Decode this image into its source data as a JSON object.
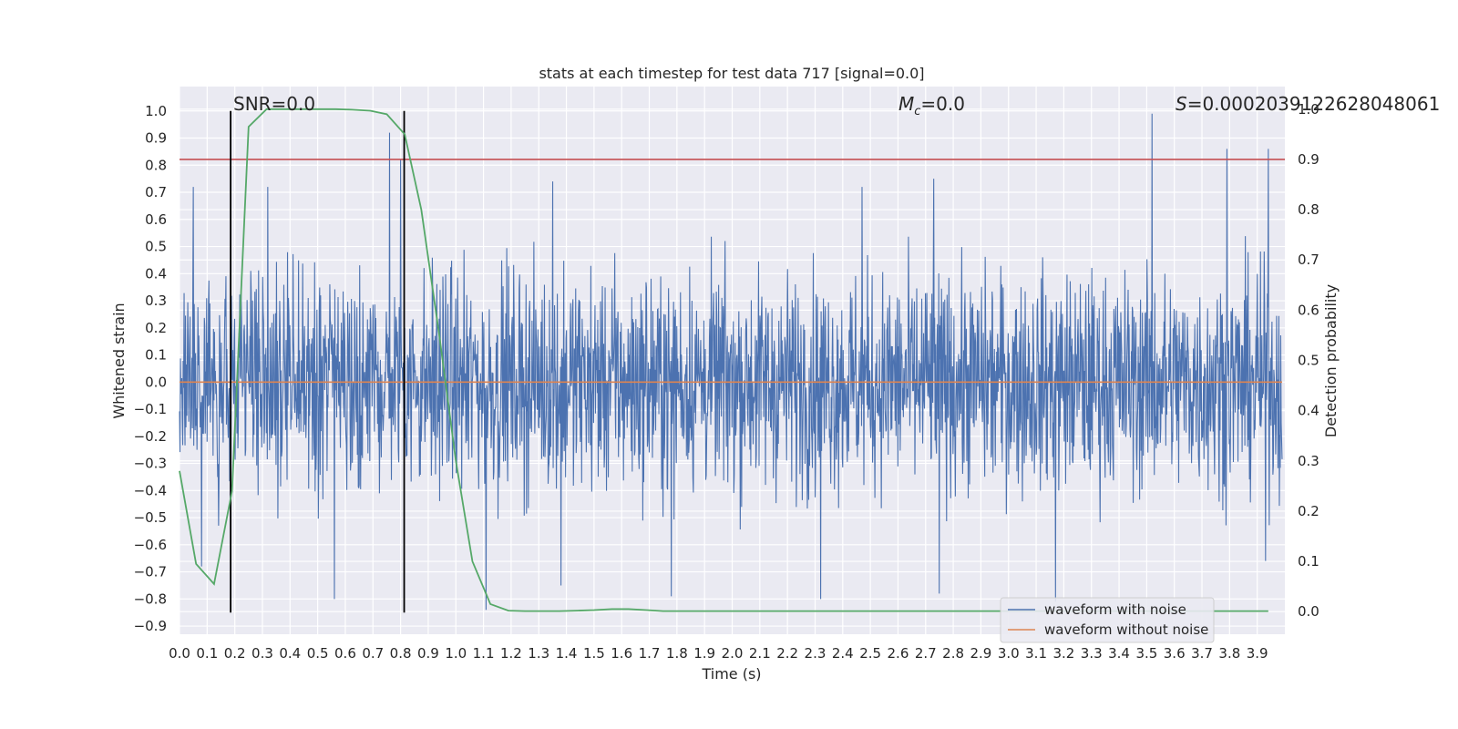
{
  "chart_data": {
    "type": "line",
    "title": "stats at each timestep for test data 717 [signal=0.0]",
    "xlabel": "Time (s)",
    "ylabel": "Whitened strain",
    "ylabel_right": "Detection probability",
    "xlim": [
      0.0,
      4.0
    ],
    "ylim": [
      -0.93,
      1.09
    ],
    "ylim_right": [
      -0.045,
      1.045
    ],
    "grid": true,
    "legend_position": "lower-right",
    "x_ticks": [
      "0.0",
      "0.1",
      "0.2",
      "0.3",
      "0.4",
      "0.5",
      "0.6",
      "0.7",
      "0.8",
      "0.9",
      "1.0",
      "1.1",
      "1.2",
      "1.3",
      "1.4",
      "1.5",
      "1.6",
      "1.7",
      "1.8",
      "1.9",
      "2.0",
      "2.1",
      "2.2",
      "2.3",
      "2.4",
      "2.5",
      "2.6",
      "2.7",
      "2.8",
      "2.9",
      "3.0",
      "3.1",
      "3.2",
      "3.3",
      "3.4",
      "3.5",
      "3.6",
      "3.7",
      "3.8",
      "3.9"
    ],
    "y_ticks": [
      "1.0",
      "0.9",
      "0.8",
      "0.7",
      "0.6",
      "0.5",
      "0.4",
      "0.3",
      "0.2",
      "0.1",
      "0.0",
      "−0.1",
      "−0.2",
      "−0.3",
      "−0.4",
      "−0.5",
      "−0.6",
      "−0.7",
      "−0.8",
      "−0.9"
    ],
    "y_ticks_right": [
      "1.0",
      "0.9",
      "0.8",
      "0.7",
      "0.6",
      "0.5",
      "0.4",
      "0.3",
      "0.2",
      "0.1",
      "0.0"
    ],
    "annotations": {
      "snr": "SNR=0.0",
      "mc_symbol": "M",
      "mc_sub": "c",
      "mc_value": "=0.0",
      "s_symbol": "S",
      "s_value": "=0.0002039122628048061"
    },
    "threshold_right": 0.9,
    "vertical_markers": [
      0.185,
      0.813
    ],
    "vertical_marker_range": [
      -0.85,
      1.0
    ],
    "series": [
      {
        "name": "waveform with noise",
        "color": "#4c72b0",
        "description": "dense noise trace, approx range -0.84 to 1.0",
        "noise_sigma": 0.2,
        "peaks": [
          {
            "x": 0.05,
            "y": 0.72
          },
          {
            "x": 0.08,
            "y": -0.68
          },
          {
            "x": 0.185,
            "y": -0.62
          },
          {
            "x": 0.32,
            "y": 0.72
          },
          {
            "x": 0.56,
            "y": -0.8
          },
          {
            "x": 0.76,
            "y": 0.92
          },
          {
            "x": 0.8,
            "y": 0.82
          },
          {
            "x": 1.11,
            "y": -0.84
          },
          {
            "x": 1.35,
            "y": 0.74
          },
          {
            "x": 1.38,
            "y": -0.75
          },
          {
            "x": 1.78,
            "y": -0.79
          },
          {
            "x": 2.32,
            "y": -0.8
          },
          {
            "x": 2.47,
            "y": 0.72
          },
          {
            "x": 2.73,
            "y": 0.75
          },
          {
            "x": 2.75,
            "y": -0.78
          },
          {
            "x": 3.17,
            "y": -0.81
          },
          {
            "x": 3.52,
            "y": 0.99
          },
          {
            "x": 3.79,
            "y": 0.86
          },
          {
            "x": 3.94,
            "y": 0.86
          },
          {
            "x": 3.93,
            "y": -0.66
          }
        ]
      },
      {
        "name": "waveform without noise",
        "color": "#dd8452",
        "x": [
          0.0,
          3.99
        ],
        "y": [
          0.0,
          0.0
        ]
      },
      {
        "name": "",
        "color": "#55a868",
        "axis": "right",
        "x": [
          0.0,
          0.06,
          0.125,
          0.19,
          0.25,
          0.315,
          0.375,
          0.44,
          0.5,
          0.565,
          0.625,
          0.69,
          0.75,
          0.815,
          0.875,
          0.94,
          1.0,
          1.06,
          1.125,
          1.19,
          1.25,
          1.315,
          1.375,
          1.44,
          1.5,
          1.565,
          1.625,
          1.69,
          1.75,
          1.875,
          2.0,
          2.5,
          3.0,
          3.5,
          3.94
        ],
        "y": [
          0.28,
          0.095,
          0.055,
          0.24,
          0.965,
          1.0,
          1.0,
          1.0,
          1.0,
          1.0,
          0.999,
          0.997,
          0.99,
          0.95,
          0.8,
          0.55,
          0.3,
          0.1,
          0.015,
          0.002,
          0.001,
          0.001,
          0.001,
          0.002,
          0.003,
          0.005,
          0.005,
          0.003,
          0.001,
          0.001,
          0.001,
          0.001,
          0.001,
          0.001,
          0.001
        ]
      }
    ]
  }
}
